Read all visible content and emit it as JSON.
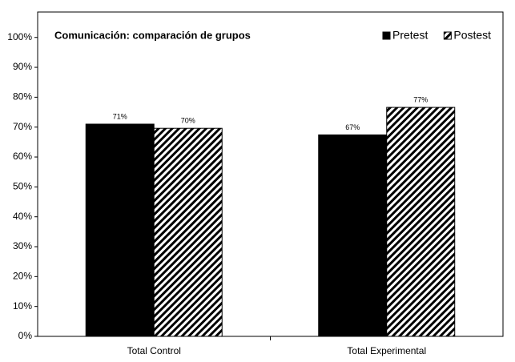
{
  "chart_data": {
    "type": "bar",
    "title": "Comunicación: comparación de grupos",
    "categories": [
      "Total Control",
      "Total Experimental"
    ],
    "series": [
      {
        "name": "Pretest",
        "color": "#000000",
        "pattern": "solid",
        "values": [
          71,
          67.4
        ],
        "value_labels": [
          "71%",
          "67%"
        ]
      },
      {
        "name": "Postest",
        "color": "#000000",
        "pattern": "diagonal",
        "values": [
          69.6,
          76.6
        ],
        "value_labels": [
          "70%",
          "77%"
        ]
      }
    ],
    "ylim": [
      0,
      108.5
    ],
    "yticks": [
      {
        "value": 0,
        "label": "0%"
      },
      {
        "value": 10,
        "label": "10%"
      },
      {
        "value": 20,
        "label": "20%"
      },
      {
        "value": 30,
        "label": "30%"
      },
      {
        "value": 40,
        "label": "40%"
      },
      {
        "value": 50,
        "label": "50%"
      },
      {
        "value": 60,
        "label": "60%"
      },
      {
        "value": 70,
        "label": "70%"
      },
      {
        "value": 80,
        "label": "80%"
      },
      {
        "value": 90,
        "label": "90%"
      },
      {
        "value": 100,
        "label": "100%"
      }
    ],
    "grid": false,
    "legend": "top-right"
  }
}
